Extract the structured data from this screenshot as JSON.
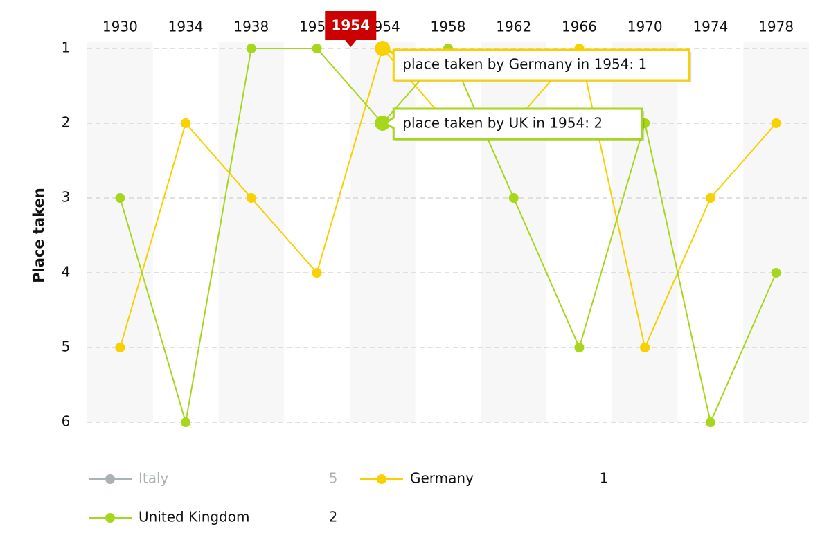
{
  "chart_data": {
    "type": "line",
    "y_axis_label": "Place taken",
    "categories": [
      "1930",
      "1934",
      "1938",
      "1950",
      "1954",
      "1958",
      "1962",
      "1966",
      "1970",
      "1974",
      "1978"
    ],
    "series": [
      {
        "name": "Italy",
        "color": "#aab2b5",
        "visible": false,
        "values": [
          null,
          null,
          null,
          null,
          5,
          null,
          null,
          null,
          null,
          null,
          null
        ]
      },
      {
        "name": "Germany",
        "color": "#f9d000",
        "visible": true,
        "values": [
          5,
          2,
          3,
          4,
          1,
          2,
          2,
          1,
          5,
          3,
          2
        ]
      },
      {
        "name": "United Kingdom",
        "color": "#a6d71c",
        "visible": true,
        "values": [
          3,
          6,
          1,
          1,
          2,
          1,
          3,
          5,
          2,
          6,
          4
        ]
      }
    ],
    "ylim": [
      1,
      6
    ],
    "y_reversed": true,
    "yticks": [
      1,
      2,
      3,
      4,
      5,
      6
    ],
    "grid": true,
    "hover_index": 4,
    "tooltips": [
      "place taken by Germany in 1954: 1",
      "place taken by UK in 1954: 2"
    ]
  }
}
